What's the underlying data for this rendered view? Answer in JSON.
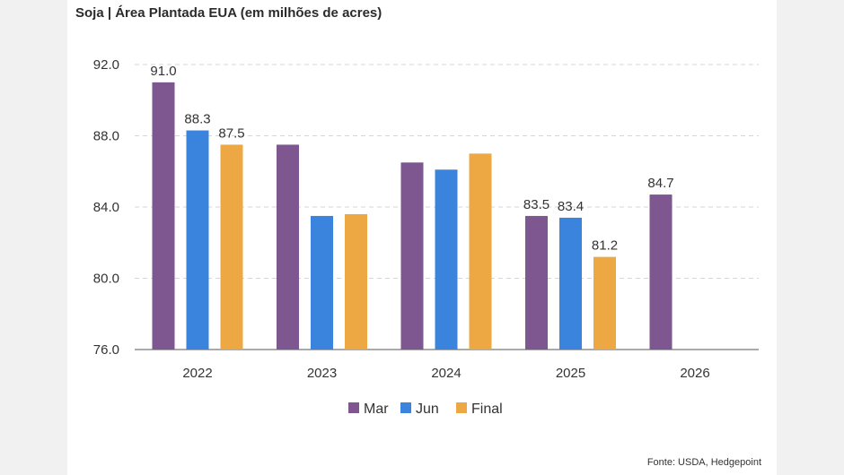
{
  "chart_data": {
    "type": "bar",
    "title": "Soja | Área Plantada EUA (em milhões de acres)",
    "categories": [
      "2022",
      "2023",
      "2024",
      "2025",
      "2026"
    ],
    "series": [
      {
        "name": "Mar",
        "color": "#7e5690",
        "values": [
          91.0,
          87.5,
          86.5,
          83.5,
          84.7
        ],
        "labels": [
          "91.0",
          null,
          null,
          "83.5",
          "84.7"
        ]
      },
      {
        "name": "Jun",
        "color": "#3b84de",
        "values": [
          88.3,
          83.5,
          86.1,
          83.4,
          null
        ],
        "labels": [
          "88.3",
          null,
          null,
          "83.4",
          null
        ]
      },
      {
        "name": "Final",
        "color": "#eda843",
        "values": [
          87.5,
          83.6,
          87.0,
          81.2,
          null
        ],
        "labels": [
          "87.5",
          null,
          null,
          "81.2",
          null
        ]
      }
    ],
    "yticks": [
      "76.0",
      "80.0",
      "84.0",
      "88.0",
      "92.0"
    ],
    "ylim": [
      76,
      92
    ],
    "grid": true,
    "legend": "bottom",
    "xlabel": "",
    "ylabel": ""
  },
  "source": "Fonte: USDA, Hedgepoint"
}
